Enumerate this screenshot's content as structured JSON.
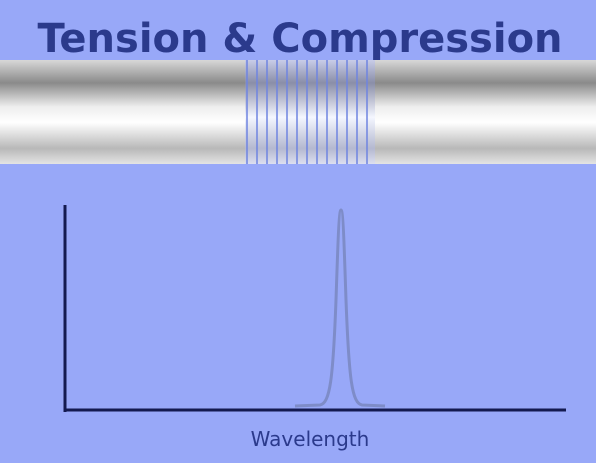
{
  "title": "Tension & Compression",
  "axis": {
    "x_label": "Wavelength"
  }
}
